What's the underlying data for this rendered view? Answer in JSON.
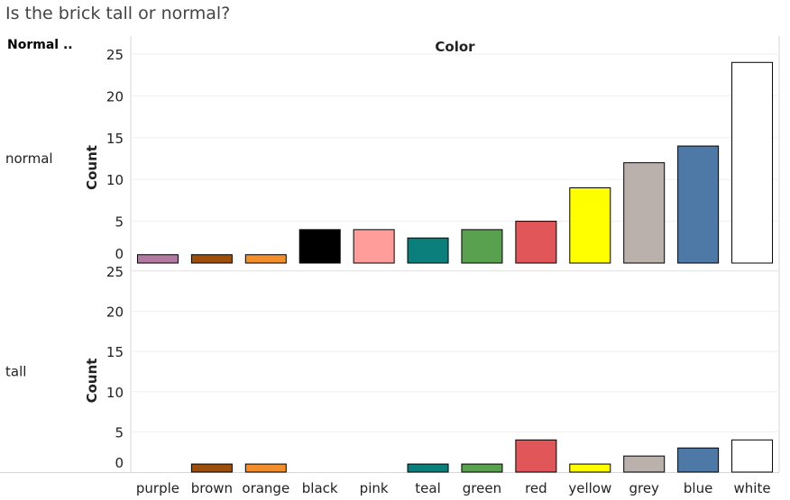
{
  "title": "Is the brick tall or normal?",
  "chart_data": {
    "type": "bar",
    "title": "Is the brick tall or normal?",
    "row_header": "Normal ..",
    "column_header": "Color",
    "ylabel": "Count",
    "ylim": [
      0,
      25
    ],
    "yticks": [
      0,
      5,
      10,
      15,
      20,
      25
    ],
    "grid": true,
    "categories": [
      "purple",
      "brown",
      "orange",
      "black",
      "pink",
      "teal",
      "green",
      "red",
      "yellow",
      "grey",
      "blue",
      "white"
    ],
    "colors": [
      "#b07aa1",
      "#9c4f0c",
      "#f28e2b",
      "#000000",
      "#ff9d9a",
      "#0a7f7b",
      "#59a14f",
      "#e15759",
      "#ffff00",
      "#bab0ac",
      "#4e79a7",
      "#ffffff"
    ],
    "panels": [
      {
        "label": "normal",
        "values": [
          1,
          1,
          1,
          4,
          4,
          3,
          4,
          5,
          9,
          12,
          14,
          24
        ]
      },
      {
        "label": "tall",
        "values": [
          0,
          1,
          1,
          0,
          0,
          1,
          1,
          4,
          1,
          2,
          3,
          4
        ]
      }
    ]
  }
}
